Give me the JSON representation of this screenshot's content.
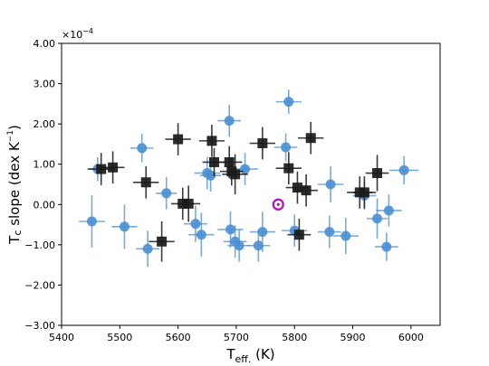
{
  "chart_data": {
    "type": "scatter",
    "title": "",
    "xlabel_main": "T",
    "xlabel_sub": "eff.",
    "xlabel_unit": " (K)",
    "ylabel_main": "T",
    "ylabel_sub": "c",
    "ylabel_rest": " slope (dex K",
    "ylabel_sup": "−1",
    "ylabel_close": ")",
    "offset_text": "×10",
    "offset_exp": "−4",
    "xlim": [
      5400,
      6050
    ],
    "ylim": [
      -3.0,
      4.0
    ],
    "x_ticks": [
      5400,
      5500,
      5600,
      5700,
      5800,
      5900,
      6000
    ],
    "x_tick_labels": [
      "5400",
      "5500",
      "5600",
      "5700",
      "5800",
      "5900",
      "6000"
    ],
    "y_ticks": [
      -3,
      -2,
      -1,
      0,
      1,
      2,
      3,
      4
    ],
    "y_tick_labels": [
      "−3.00",
      "−2.00",
      "−1.00",
      "0.00",
      "1.00",
      "2.00",
      "3.00",
      "4.00"
    ],
    "grid": false,
    "colors": {
      "circles": "#4a8fd1",
      "squares": "#1a1a1a",
      "sun": "#b412b4"
    },
    "series": [
      {
        "marker": "circle",
        "points": [
          {
            "x": 5452,
            "y": -0.42,
            "xerr": 22,
            "yerr": 0.65
          },
          {
            "x": 5462,
            "y": 0.88,
            "xerr": 18,
            "yerr": 0.3
          },
          {
            "x": 5508,
            "y": -0.55,
            "xerr": 22,
            "yerr": 0.55
          },
          {
            "x": 5538,
            "y": 1.4,
            "xerr": 20,
            "yerr": 0.35
          },
          {
            "x": 5548,
            "y": -1.1,
            "xerr": 20,
            "yerr": 0.45
          },
          {
            "x": 5580,
            "y": 0.28,
            "xerr": 18,
            "yerr": 0.4
          },
          {
            "x": 5630,
            "y": -0.48,
            "xerr": 20,
            "yerr": 0.45
          },
          {
            "x": 5640,
            "y": -0.75,
            "xerr": 22,
            "yerr": 0.55
          },
          {
            "x": 5650,
            "y": 0.78,
            "xerr": 22,
            "yerr": 0.4
          },
          {
            "x": 5656,
            "y": 0.72,
            "xerr": 18,
            "yerr": 0.4
          },
          {
            "x": 5688,
            "y": 2.08,
            "xerr": 20,
            "yerr": 0.4
          },
          {
            "x": 5690,
            "y": -0.62,
            "xerr": 22,
            "yerr": 0.45
          },
          {
            "x": 5698,
            "y": -0.92,
            "xerr": 20,
            "yerr": 0.4
          },
          {
            "x": 5705,
            "y": -1.02,
            "xerr": 20,
            "yerr": 0.4
          },
          {
            "x": 5715,
            "y": 0.88,
            "xerr": 22,
            "yerr": 0.4
          },
          {
            "x": 5738,
            "y": -1.02,
            "xerr": 20,
            "yerr": 0.4
          },
          {
            "x": 5745,
            "y": -0.68,
            "xerr": 22,
            "yerr": 0.5
          },
          {
            "x": 5785,
            "y": 1.42,
            "xerr": 20,
            "yerr": 0.35
          },
          {
            "x": 5790,
            "y": 2.55,
            "xerr": 22,
            "yerr": 0.3
          },
          {
            "x": 5800,
            "y": -0.65,
            "xerr": 22,
            "yerr": 0.4
          },
          {
            "x": 5862,
            "y": 0.5,
            "xerr": 22,
            "yerr": 0.45
          },
          {
            "x": 5860,
            "y": -0.68,
            "xerr": 20,
            "yerr": 0.4
          },
          {
            "x": 5888,
            "y": -0.78,
            "xerr": 22,
            "yerr": 0.45
          },
          {
            "x": 5920,
            "y": 0.22,
            "xerr": 20,
            "yerr": 0.35
          },
          {
            "x": 5942,
            "y": -0.35,
            "xerr": 18,
            "yerr": 0.5
          },
          {
            "x": 5958,
            "y": -1.05,
            "xerr": 20,
            "yerr": 0.35
          },
          {
            "x": 5962,
            "y": -0.15,
            "xerr": 22,
            "yerr": 0.4
          },
          {
            "x": 5988,
            "y": 0.85,
            "xerr": 25,
            "yerr": 0.35
          }
        ]
      },
      {
        "marker": "square",
        "points": [
          {
            "x": 5468,
            "y": 0.88,
            "xerr": 22,
            "yerr": 0.4
          },
          {
            "x": 5488,
            "y": 0.92,
            "xerr": 20,
            "yerr": 0.4
          },
          {
            "x": 5545,
            "y": 0.55,
            "xerr": 22,
            "yerr": 0.4
          },
          {
            "x": 5572,
            "y": -0.92,
            "xerr": 22,
            "yerr": 0.5
          },
          {
            "x": 5600,
            "y": 1.62,
            "xerr": 22,
            "yerr": 0.4
          },
          {
            "x": 5608,
            "y": 0.02,
            "xerr": 20,
            "yerr": 0.4
          },
          {
            "x": 5618,
            "y": 0.02,
            "xerr": 20,
            "yerr": 0.45
          },
          {
            "x": 5658,
            "y": 1.58,
            "xerr": 22,
            "yerr": 0.4
          },
          {
            "x": 5662,
            "y": 1.05,
            "xerr": 20,
            "yerr": 0.35
          },
          {
            "x": 5688,
            "y": 1.05,
            "xerr": 22,
            "yerr": 0.4
          },
          {
            "x": 5692,
            "y": 0.82,
            "xerr": 20,
            "yerr": 0.35
          },
          {
            "x": 5698,
            "y": 0.75,
            "xerr": 22,
            "yerr": 0.5
          },
          {
            "x": 5745,
            "y": 1.52,
            "xerr": 22,
            "yerr": 0.4
          },
          {
            "x": 5790,
            "y": 0.9,
            "xerr": 22,
            "yerr": 0.4
          },
          {
            "x": 5805,
            "y": 0.42,
            "xerr": 20,
            "yerr": 0.4
          },
          {
            "x": 5808,
            "y": -0.75,
            "xerr": 20,
            "yerr": 0.4
          },
          {
            "x": 5820,
            "y": 0.35,
            "xerr": 20,
            "yerr": 0.4
          },
          {
            "x": 5828,
            "y": 1.65,
            "xerr": 22,
            "yerr": 0.4
          },
          {
            "x": 5912,
            "y": 0.3,
            "xerr": 22,
            "yerr": 0.4
          },
          {
            "x": 5920,
            "y": 0.3,
            "xerr": 20,
            "yerr": 0.4
          },
          {
            "x": 5942,
            "y": 0.78,
            "xerr": 20,
            "yerr": 0.45
          }
        ]
      },
      {
        "marker": "sun",
        "points": [
          {
            "x": 5772,
            "y": 0.0
          }
        ]
      }
    ]
  }
}
